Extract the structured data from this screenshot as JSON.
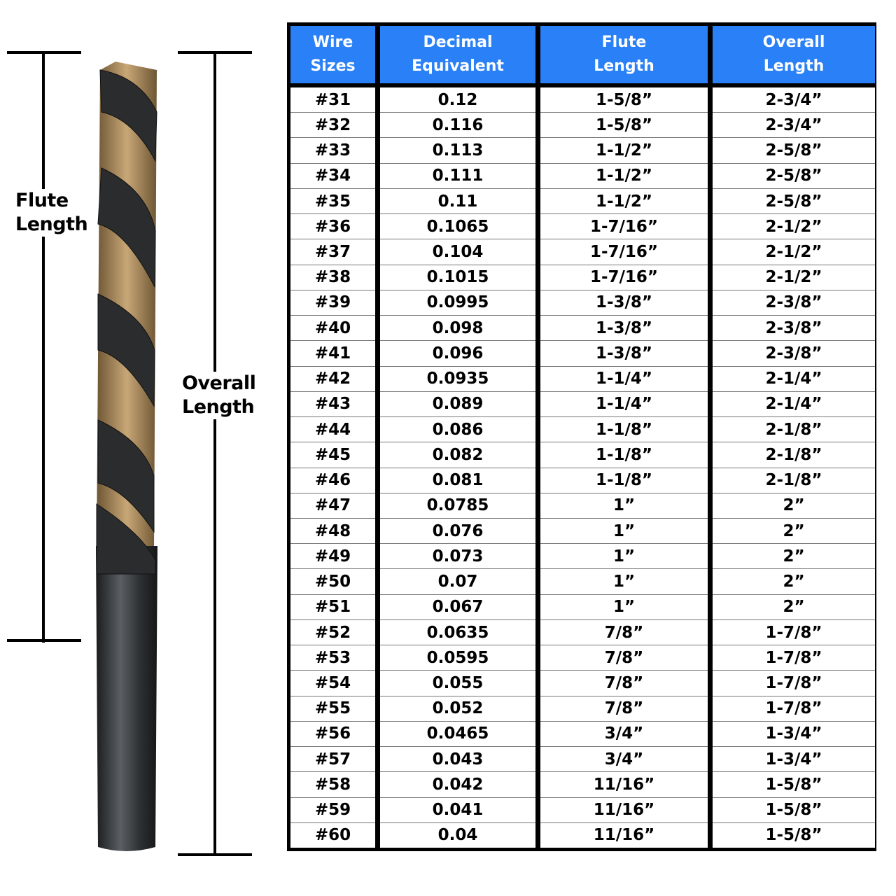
{
  "labels": {
    "flute": "Flute\nLength",
    "overall": "Overall\nLength"
  },
  "colors": {
    "header": "#2a80f6",
    "border": "#000000",
    "drill_black": "#2a2c2e",
    "drill_gold": "#a8875a"
  },
  "table": {
    "headers": [
      "Wire\nSizes",
      "Decimal\nEquivalent",
      "Flute\nLength",
      "Overall\nLength"
    ],
    "rows": [
      [
        "#31",
        "0.12",
        "1-5/8”",
        "2-3/4”"
      ],
      [
        "#32",
        "0.116",
        "1-5/8”",
        "2-3/4”"
      ],
      [
        "#33",
        "0.113",
        "1-1/2”",
        "2-5/8”"
      ],
      [
        "#34",
        "0.111",
        "1-1/2”",
        "2-5/8”"
      ],
      [
        "#35",
        "0.11",
        "1-1/2”",
        "2-5/8”"
      ],
      [
        "#36",
        "0.1065",
        "1-7/16”",
        "2-1/2”"
      ],
      [
        "#37",
        "0.104",
        "1-7/16”",
        "2-1/2”"
      ],
      [
        "#38",
        "0.1015",
        "1-7/16”",
        "2-1/2”"
      ],
      [
        "#39",
        "0.0995",
        "1-3/8”",
        "2-3/8”"
      ],
      [
        "#40",
        "0.098",
        "1-3/8”",
        "2-3/8”"
      ],
      [
        "#41",
        "0.096",
        "1-3/8”",
        "2-3/8”"
      ],
      [
        "#42",
        "0.0935",
        "1-1/4”",
        "2-1/4”"
      ],
      [
        "#43",
        "0.089",
        "1-1/4”",
        "2-1/4”"
      ],
      [
        "#44",
        "0.086",
        "1-1/8”",
        "2-1/8”"
      ],
      [
        "#45",
        "0.082",
        "1-1/8”",
        "2-1/8”"
      ],
      [
        "#46",
        "0.081",
        "1-1/8”",
        "2-1/8”"
      ],
      [
        "#47",
        "0.0785",
        "1”",
        "2”"
      ],
      [
        "#48",
        "0.076",
        "1”",
        "2”"
      ],
      [
        "#49",
        "0.073",
        "1”",
        "2”"
      ],
      [
        "#50",
        "0.07",
        "1”",
        "2”"
      ],
      [
        "#51",
        "0.067",
        "1”",
        "2”"
      ],
      [
        "#52",
        "0.0635",
        "7/8”",
        "1-7/8”"
      ],
      [
        "#53",
        "0.0595",
        "7/8”",
        "1-7/8”"
      ],
      [
        "#54",
        "0.055",
        "7/8”",
        "1-7/8”"
      ],
      [
        "#55",
        "0.052",
        "7/8”",
        "1-7/8”"
      ],
      [
        "#56",
        "0.0465",
        "3/4”",
        "1-3/4”"
      ],
      [
        "#57",
        "0.043",
        "3/4”",
        "1-3/4”"
      ],
      [
        "#58",
        "0.042",
        "11/16”",
        "1-5/8”"
      ],
      [
        "#59",
        "0.041",
        "11/16”",
        "1-5/8”"
      ],
      [
        "#60",
        "0.04",
        "11/16”",
        "1-5/8”"
      ]
    ]
  }
}
